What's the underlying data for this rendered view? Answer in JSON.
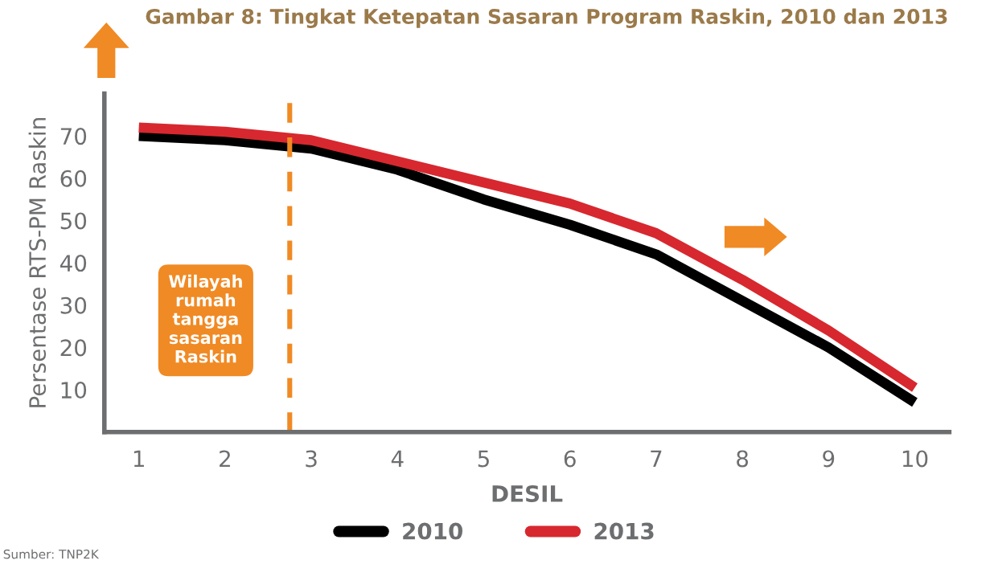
{
  "chart_data": {
    "type": "line",
    "title": "Gambar 8: Tingkat Ketepatan Sasaran Program Raskin, 2010 dan 2013",
    "xlabel": "DESIL",
    "ylabel": "Persentase RTS-PM Raskin",
    "x": [
      1,
      2,
      3,
      4,
      5,
      6,
      7,
      8,
      9,
      10
    ],
    "series": [
      {
        "name": "2010",
        "color": "#000000",
        "values": [
          70,
          69,
          67,
          62,
          55,
          49,
          42,
          31,
          20,
          7
        ]
      },
      {
        "name": "2013",
        "color": "#d7282f",
        "values": [
          72,
          71,
          69,
          64,
          59,
          54,
          47,
          36,
          24,
          10.5
        ]
      }
    ],
    "xlim": [
      0.6,
      10.4
    ],
    "xticks": [
      1,
      2,
      3,
      4,
      5,
      6,
      7,
      8,
      9,
      10
    ],
    "ylim": [
      0,
      80
    ],
    "yticks": [
      10,
      20,
      30,
      40,
      50,
      60,
      70
    ],
    "ref_lines": [
      {
        "axis": "x",
        "value": 2.75,
        "color": "#f08a24",
        "line_style": "dashed"
      }
    ],
    "annotations": [
      "Wilayah\nrumah\ntangga\nsasaran\nRaskin",
      "Sumber: TNP2K"
    ],
    "legend": "bottom",
    "grid": false,
    "marker": "none",
    "line_style": "solid"
  }
}
